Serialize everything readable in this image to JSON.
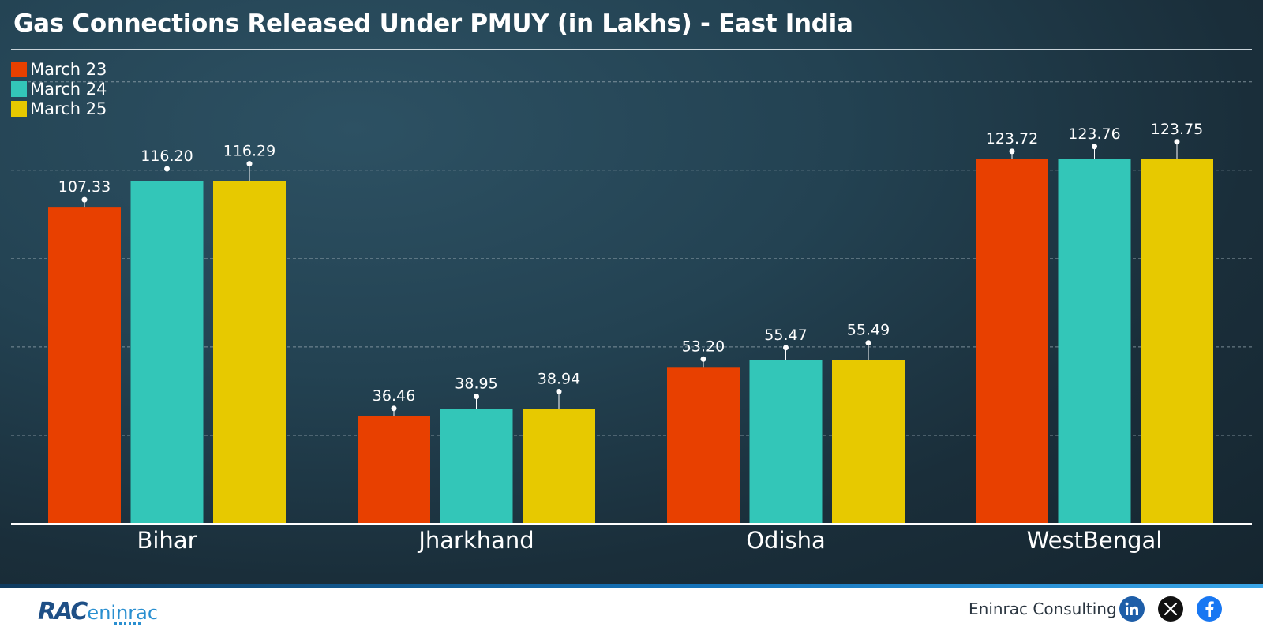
{
  "title": "Gas Connections Released Under PMUY (in Lakhs) - East India",
  "footer": {
    "brand": "Eninrac Consulting",
    "logo_text": "RAC",
    "logo_sub": "eninrac"
  },
  "colors": {
    "March 23": "#e84000",
    "March 24": "#33c6b8",
    "March 25": "#e7c900",
    "axis": "#ffffff",
    "grid": "#9aaab3"
  },
  "icons": [
    "linkedin-icon",
    "x-icon",
    "facebook-icon"
  ],
  "chart_data": {
    "type": "bar",
    "title": "Gas Connections Released Under PMUY (in Lakhs) - East India",
    "categories": [
      "Bihar",
      "Jharkhand",
      "Odisha",
      "WestBengal"
    ],
    "series": [
      {
        "name": "March 23",
        "values": [
          107.33,
          36.46,
          53.2,
          123.72
        ],
        "labels": [
          "107.33",
          "36.46",
          "53.20",
          "123.72"
        ]
      },
      {
        "name": "March 24",
        "values": [
          116.2,
          38.95,
          55.47,
          123.76
        ],
        "labels": [
          "116.20",
          "38.95",
          "55.47",
          "123.76"
        ]
      },
      {
        "name": "March 25",
        "values": [
          116.29,
          38.94,
          55.49,
          123.75
        ],
        "labels": [
          "116.29",
          "38.94",
          "55.49",
          "123.75"
        ]
      }
    ],
    "grid": true,
    "legend": "top-left",
    "xlabel": "",
    "ylabel": ""
  }
}
